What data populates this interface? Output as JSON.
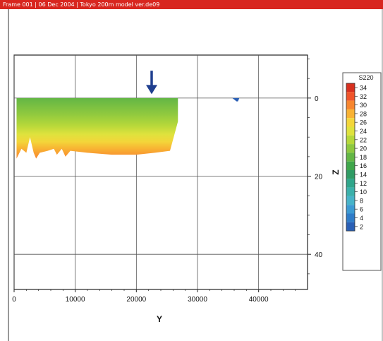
{
  "window": {
    "title": "Frame 001 | 06 Dec 2004 | Tokyo 200m model ver.de09"
  },
  "colors": {
    "title_bar": "#d8261f",
    "arrow": "#1f3f8f",
    "axis": "#222222",
    "grid": "#555555"
  },
  "chart_data": {
    "type": "contour",
    "xlabel": "Y",
    "ylabel": "Z",
    "xlim": [
      0,
      48000
    ],
    "ylim": [
      49,
      -11
    ],
    "y_inverted": true,
    "x_ticks": [
      0,
      10000,
      20000,
      30000,
      40000
    ],
    "x_tick_labels": [
      "0",
      "10000",
      "20000",
      "30000",
      "40000"
    ],
    "y_ticks": [
      0,
      20,
      40
    ],
    "y_tick_labels": [
      "0",
      "20",
      "40"
    ],
    "grid": true,
    "colorbar": {
      "title": "S220",
      "levels": [
        34,
        32,
        30,
        28,
        26,
        24,
        22,
        20,
        18,
        16,
        14,
        12,
        10,
        8,
        6,
        4,
        2
      ],
      "level_labels": [
        "34",
        "32",
        "30",
        "28",
        "26",
        "24",
        "22",
        "20",
        "18",
        "16",
        "14",
        "12",
        "10",
        "8",
        "6",
        "4",
        "2"
      ],
      "colors": [
        "#d7301f",
        "#f0542a",
        "#f7862f",
        "#f8b233",
        "#f3d63a",
        "#dfe23d",
        "#b6d83a",
        "#8dc83f",
        "#63b645",
        "#3fa64a",
        "#2f9b64",
        "#2fa58a",
        "#3bb0aa",
        "#47b3c8",
        "#3c9ad2",
        "#2f7cc8",
        "#2a5fb5"
      ]
    },
    "field": {
      "y_start": 400,
      "y_end": 26800,
      "bottom_profile": [
        {
          "y": 400,
          "z": 15.5
        },
        {
          "y": 1200,
          "z": 13
        },
        {
          "y": 2000,
          "z": 14
        },
        {
          "y": 2600,
          "z": 10
        },
        {
          "y": 3200,
          "z": 14
        },
        {
          "y": 3600,
          "z": 15.5
        },
        {
          "y": 4200,
          "z": 14
        },
        {
          "y": 5500,
          "z": 13.5
        },
        {
          "y": 6500,
          "z": 13
        },
        {
          "y": 7000,
          "z": 14.5
        },
        {
          "y": 7800,
          "z": 13
        },
        {
          "y": 8400,
          "z": 15
        },
        {
          "y": 9200,
          "z": 13.5
        },
        {
          "y": 12000,
          "z": 14
        },
        {
          "y": 16000,
          "z": 14.5
        },
        {
          "y": 20000,
          "z": 14.5
        },
        {
          "y": 23000,
          "z": 14
        },
        {
          "y": 25500,
          "z": 13.5
        },
        {
          "y": 26800,
          "z": 6
        }
      ],
      "bands": [
        {
          "depth_fraction": 0,
          "value": 18
        },
        {
          "depth_fraction": 0.25,
          "value": 20
        },
        {
          "depth_fraction": 0.45,
          "value": 22
        },
        {
          "depth_fraction": 0.6,
          "value": 24
        },
        {
          "depth_fraction": 0.72,
          "value": 26
        },
        {
          "depth_fraction": 0.84,
          "value": 28
        },
        {
          "depth_fraction": 1,
          "value": 30
        }
      ]
    },
    "small_feature": {
      "y": 36500,
      "z": 0.5
    },
    "annotation_arrow": {
      "y": 22500,
      "z_from": -7,
      "z_to": -1
    }
  }
}
